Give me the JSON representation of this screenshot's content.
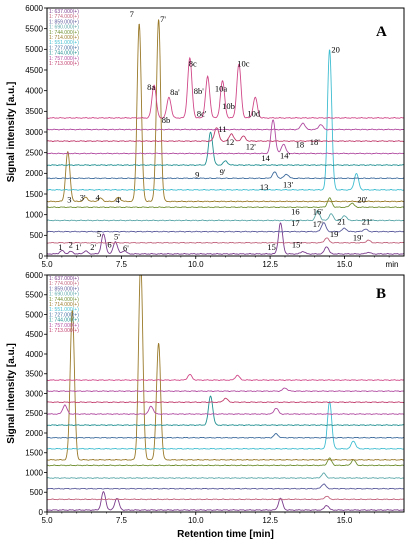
{
  "chart_data": [
    {
      "type": "line",
      "panel": "A",
      "xlabel": "min",
      "ylabel": "Signal intensity  [a.u.]",
      "xlim": [
        5.0,
        17.0
      ],
      "ylim": [
        0,
        6000
      ],
      "x_ticks": [
        "5.0",
        "7.5",
        "10.0",
        "12.5",
        "15.0"
      ],
      "y_ticks": [
        "0",
        "500",
        "1000",
        "1500",
        "2000",
        "2500",
        "3000",
        "3500",
        "4000",
        "4500",
        "5000",
        "5500",
        "6000"
      ],
      "grid": false,
      "legend_position": "top-left",
      "series": [
        {
          "name": "1: 637.000(+)",
          "color": "#7a3b8c",
          "offset": 50,
          "peaks": [
            [
              5.5,
              80
            ],
            [
              5.8,
              60
            ],
            [
              6.3,
              70
            ],
            [
              6.9,
              480
            ],
            [
              7.3,
              300
            ],
            [
              7.6,
              80
            ],
            [
              12.85,
              750
            ],
            [
              13.6,
              60
            ],
            [
              14.4,
              180
            ],
            [
              15.8,
              40
            ]
          ]
        },
        {
          "name": "1: 774.000(+)",
          "color": "#c0607a",
          "offset": 320,
          "peaks": [
            [
              14.4,
              120
            ],
            [
              15.8,
              60
            ]
          ]
        },
        {
          "name": "1: 859.000(+)",
          "color": "#5a5a9c",
          "offset": 590,
          "peaks": [
            [
              14.3,
              220
            ],
            [
              15.0,
              80
            ],
            [
              15.7,
              60
            ]
          ]
        },
        {
          "name": "1: 690.000(+)",
          "color": "#5aa6a8",
          "offset": 860,
          "peaks": [
            [
              14.1,
              230
            ],
            [
              14.55,
              160
            ],
            [
              15.0,
              120
            ]
          ]
        },
        {
          "name": "1: 744.000(+)",
          "color": "#6e8e2e",
          "offset": 1180,
          "peaks": [
            [
              14.5,
              220
            ],
            [
              15.25,
              100
            ]
          ]
        },
        {
          "name": "1: 714.000(+)",
          "color": "#9a7a2a",
          "offset": 1320,
          "peaks": [
            [
              5.7,
              1200
            ],
            [
              6.3,
              100
            ],
            [
              6.8,
              80
            ],
            [
              7.4,
              100
            ],
            [
              8.1,
              4300
            ],
            [
              8.75,
              4400
            ]
          ]
        },
        {
          "name": "1: 551.000(+)",
          "color": "#3fbdd0",
          "offset": 1600,
          "peaks": [
            [
              14.5,
              3400
            ],
            [
              15.4,
              400
            ]
          ]
        },
        {
          "name": "1: 727.000(+)",
          "color": "#3c6a9c",
          "offset": 1880,
          "peaks": [
            [
              12.65,
              150
            ],
            [
              13.05,
              100
            ]
          ]
        },
        {
          "name": "1: 744.000(+)",
          "color": "#1e8e90",
          "offset": 2200,
          "peaks": [
            [
              10.5,
              800
            ],
            [
              11.0,
              100
            ]
          ]
        },
        {
          "name": "1: 757.000(+)",
          "color": "#b04aa0",
          "offset": 2480,
          "peaks": [
            [
              12.6,
              820
            ],
            [
              12.95,
              230
            ]
          ]
        },
        {
          "name": "1: 713.000(+)",
          "color": "#c03a6a",
          "offset": 2780,
          "peaks": [
            [
              10.7,
              330
            ],
            [
              11.2,
              180
            ],
            [
              11.6,
              120
            ]
          ]
        },
        {
          "name": "",
          "color": "#b04aa0",
          "offset": 3060,
          "peaks": [
            [
              13.6,
              160
            ],
            [
              14.2,
              120
            ]
          ]
        },
        {
          "name": "",
          "color": "#d04888",
          "offset": 3340,
          "peaks": [
            [
              8.6,
              800
            ],
            [
              9.1,
              500
            ],
            [
              9.8,
              1450
            ],
            [
              10.4,
              1000
            ],
            [
              10.9,
              900
            ],
            [
              11.45,
              1300
            ],
            [
              12.0,
              500
            ]
          ]
        }
      ],
      "peak_labels": [
        {
          "text": "7",
          "x": 7.85,
          "y": 5780
        },
        {
          "text": "7'",
          "x": 8.9,
          "y": 5660
        },
        {
          "text": "8a",
          "x": 8.5,
          "y": 4020
        },
        {
          "text": "8b",
          "x": 9.0,
          "y": 3220
        },
        {
          "text": "8a'",
          "x": 9.3,
          "y": 3900
        },
        {
          "text": "8c",
          "x": 9.9,
          "y": 4580
        },
        {
          "text": "8b'",
          "x": 10.1,
          "y": 3920
        },
        {
          "text": "8c'",
          "x": 10.2,
          "y": 3380
        },
        {
          "text": "10a",
          "x": 10.85,
          "y": 3980
        },
        {
          "text": "10b",
          "x": 11.1,
          "y": 3560
        },
        {
          "text": "10c",
          "x": 11.6,
          "y": 4580
        },
        {
          "text": "10d",
          "x": 11.95,
          "y": 3380
        },
        {
          "text": "11",
          "x": 10.9,
          "y": 3000
        },
        {
          "text": "12",
          "x": 11.15,
          "y": 2680
        },
        {
          "text": "12'",
          "x": 11.85,
          "y": 2580
        },
        {
          "text": "14",
          "x": 12.35,
          "y": 2300
        },
        {
          "text": "14'",
          "x": 13.0,
          "y": 2360
        },
        {
          "text": "18",
          "x": 13.5,
          "y": 2620
        },
        {
          "text": "18'",
          "x": 14.0,
          "y": 2680
        },
        {
          "text": "9",
          "x": 10.05,
          "y": 1900
        },
        {
          "text": "9'",
          "x": 10.9,
          "y": 1960
        },
        {
          "text": "13",
          "x": 12.3,
          "y": 1600
        },
        {
          "text": "13'",
          "x": 13.1,
          "y": 1660
        },
        {
          "text": "3",
          "x": 5.75,
          "y": 1300
        },
        {
          "text": "3'",
          "x": 6.2,
          "y": 1340
        },
        {
          "text": "4",
          "x": 6.7,
          "y": 1340
        },
        {
          "text": "4'",
          "x": 7.4,
          "y": 1280
        },
        {
          "text": "20",
          "x": 14.7,
          "y": 4920
        },
        {
          "text": "20'",
          "x": 15.6,
          "y": 1300
        },
        {
          "text": "16",
          "x": 13.35,
          "y": 1000
        },
        {
          "text": "16'",
          "x": 14.1,
          "y": 1000
        },
        {
          "text": "17",
          "x": 13.35,
          "y": 720
        },
        {
          "text": "17'",
          "x": 14.1,
          "y": 700
        },
        {
          "text": "21",
          "x": 14.9,
          "y": 760
        },
        {
          "text": "21'",
          "x": 15.75,
          "y": 760
        },
        {
          "text": "19",
          "x": 14.65,
          "y": 460
        },
        {
          "text": "19'",
          "x": 15.45,
          "y": 380
        },
        {
          "text": "15",
          "x": 12.55,
          "y": 140
        },
        {
          "text": "15'",
          "x": 13.4,
          "y": 200
        },
        {
          "text": "5",
          "x": 6.75,
          "y": 460
        },
        {
          "text": "5'",
          "x": 7.35,
          "y": 400
        },
        {
          "text": "6",
          "x": 7.1,
          "y": 200
        },
        {
          "text": "6'",
          "x": 7.65,
          "y": 120
        },
        {
          "text": "1",
          "x": 5.45,
          "y": 150
        },
        {
          "text": "2",
          "x": 5.8,
          "y": 200
        },
        {
          "text": "1'",
          "x": 6.05,
          "y": 150
        },
        {
          "text": "2'",
          "x": 6.55,
          "y": 150
        }
      ]
    },
    {
      "type": "line",
      "panel": "B",
      "xlabel": "Retention time  [min]",
      "ylabel": "Signal intensity  [a.u.]",
      "xlim": [
        5.0,
        17.0
      ],
      "ylim": [
        0,
        6000
      ],
      "x_ticks": [
        "5.0",
        "7.5",
        "10.0",
        "12.5",
        "15.0"
      ],
      "y_ticks": [
        "0",
        "500",
        "1000",
        "1500",
        "2000",
        "2500",
        "3000",
        "3500",
        "4000",
        "4500",
        "5000",
        "5500",
        "6000"
      ],
      "grid": false,
      "legend_position": "top-left",
      "series": [
        {
          "name": "1: 637.000(+)",
          "color": "#7a3b8c",
          "offset": 50,
          "peaks": [
            [
              6.9,
              460
            ],
            [
              7.35,
              300
            ],
            [
              12.85,
              300
            ],
            [
              14.4,
              120
            ]
          ]
        },
        {
          "name": "1: 774.000(+)",
          "color": "#c0607a",
          "offset": 320,
          "peaks": [
            [
              14.4,
              80
            ]
          ]
        },
        {
          "name": "1: 859.000(+)",
          "color": "#5a5a9c",
          "offset": 590,
          "peaks": [
            [
              14.3,
              120
            ]
          ]
        },
        {
          "name": "1: 690.000(+)",
          "color": "#5aa6a8",
          "offset": 860,
          "peaks": [
            [
              14.3,
              120
            ]
          ]
        },
        {
          "name": "1: 744.000(+)",
          "color": "#6e8e2e",
          "offset": 1180,
          "peaks": [
            [
              14.5,
              180
            ],
            [
              15.3,
              140
            ]
          ]
        },
        {
          "name": "1: 714.000(+)",
          "color": "#9a7a2a",
          "offset": 1320,
          "peaks": [
            [
              5.85,
              3800
            ],
            [
              8.15,
              5000
            ],
            [
              8.75,
              2950
            ]
          ]
        },
        {
          "name": "1: 551.000(+)",
          "color": "#3fbdd0",
          "offset": 1600,
          "peaks": [
            [
              14.5,
              1200
            ],
            [
              15.3,
              200
            ]
          ]
        },
        {
          "name": "1: 727.000(+)",
          "color": "#3c6a9c",
          "offset": 1880,
          "peaks": [
            [
              12.7,
              100
            ]
          ]
        },
        {
          "name": "1: 744.000(+)",
          "color": "#1e8e90",
          "offset": 2200,
          "peaks": [
            [
              10.5,
              740
            ]
          ]
        },
        {
          "name": "1: 757.000(+)",
          "color": "#b04aa0",
          "offset": 2480,
          "peaks": [
            [
              5.6,
              230
            ],
            [
              8.5,
              200
            ],
            [
              12.7,
              150
            ]
          ]
        },
        {
          "name": "1: 713.000(+)",
          "color": "#c03a6a",
          "offset": 2780,
          "peaks": [
            [
              11.0,
              100
            ]
          ]
        },
        {
          "name": "",
          "color": "#b04aa0",
          "offset": 3060,
          "peaks": [
            [
              13.0,
              80
            ]
          ]
        },
        {
          "name": "",
          "color": "#d04888",
          "offset": 3340,
          "peaks": [
            [
              9.8,
              140
            ],
            [
              11.4,
              120
            ]
          ]
        }
      ],
      "peak_labels": []
    }
  ]
}
